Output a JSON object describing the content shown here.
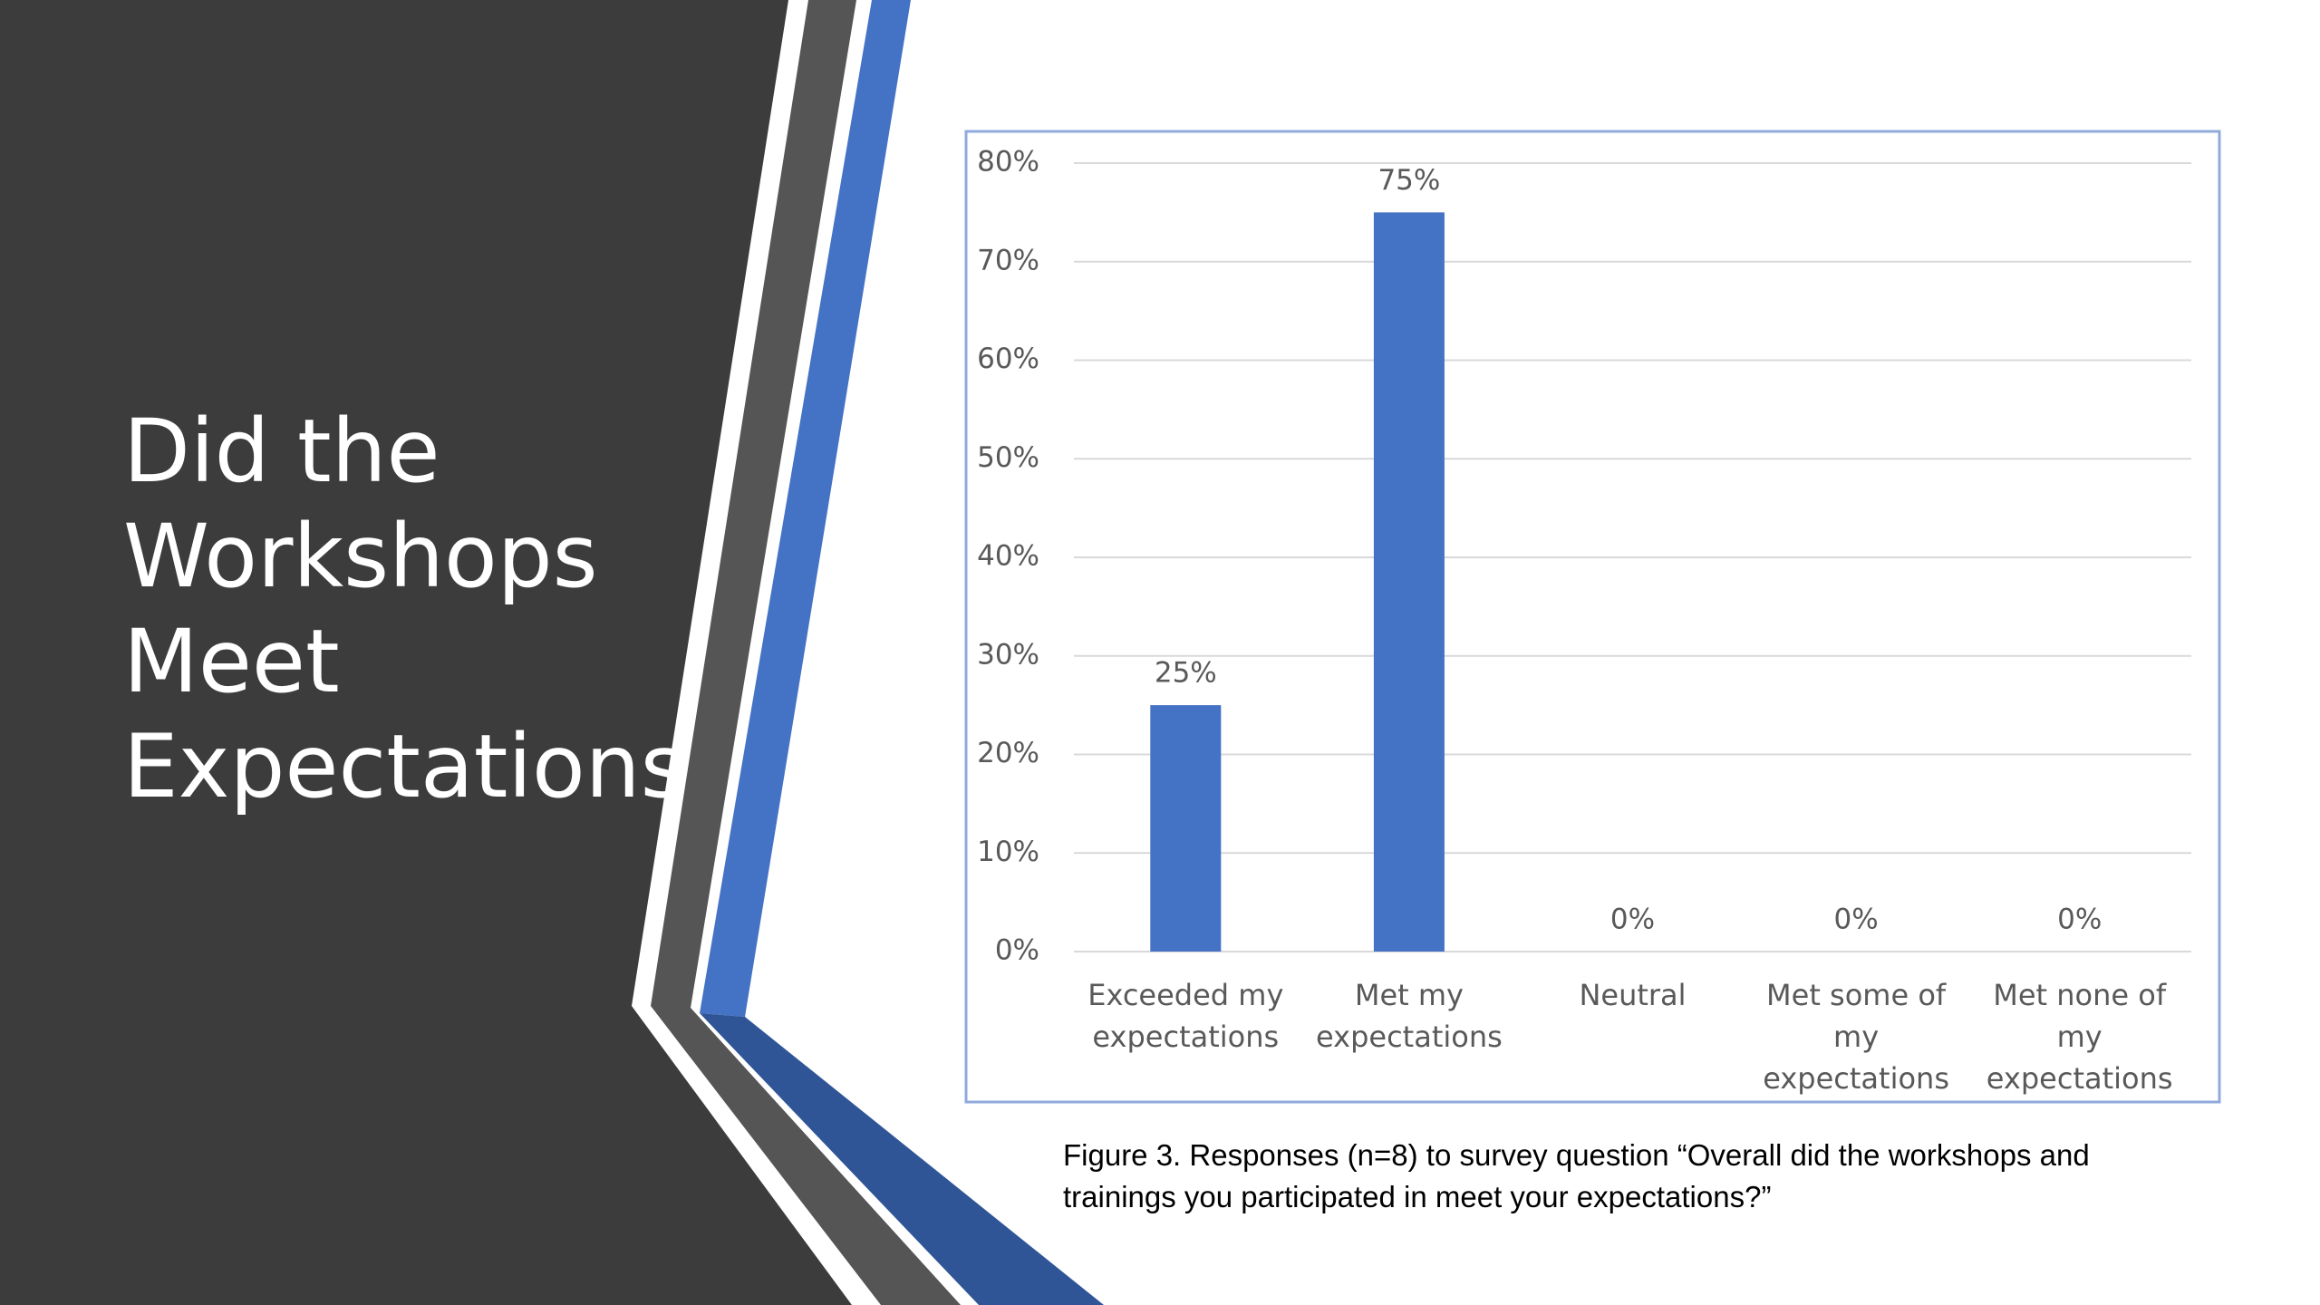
{
  "slide_title": "Did the Workshops Meet Expectations",
  "caption": "Figure 3.  Responses (n=8) to survey question “Overall did the workshops and trainings you participated in meet your expectations?”",
  "chart_data": {
    "type": "bar",
    "categories": [
      "Exceeded my expectations",
      "Met my expectations",
      "Neutral",
      "Met some of my expectations",
      "Met none of my expectations"
    ],
    "values": [
      25,
      75,
      0,
      0,
      0
    ],
    "value_labels": [
      "25%",
      "75%",
      "0%",
      "0%",
      "0%"
    ],
    "color": "#4472c4",
    "ylim": [
      0,
      80
    ],
    "yticks": [
      {
        "value": 0,
        "label": "0%"
      },
      {
        "value": 10,
        "label": "10%"
      },
      {
        "value": 20,
        "label": "20%"
      },
      {
        "value": 30,
        "label": "30%"
      },
      {
        "value": 40,
        "label": "40%"
      },
      {
        "value": 50,
        "label": "50%"
      },
      {
        "value": 60,
        "label": "60%"
      },
      {
        "value": 70,
        "label": "70%"
      },
      {
        "value": 80,
        "label": "80%"
      }
    ],
    "grid": true
  }
}
